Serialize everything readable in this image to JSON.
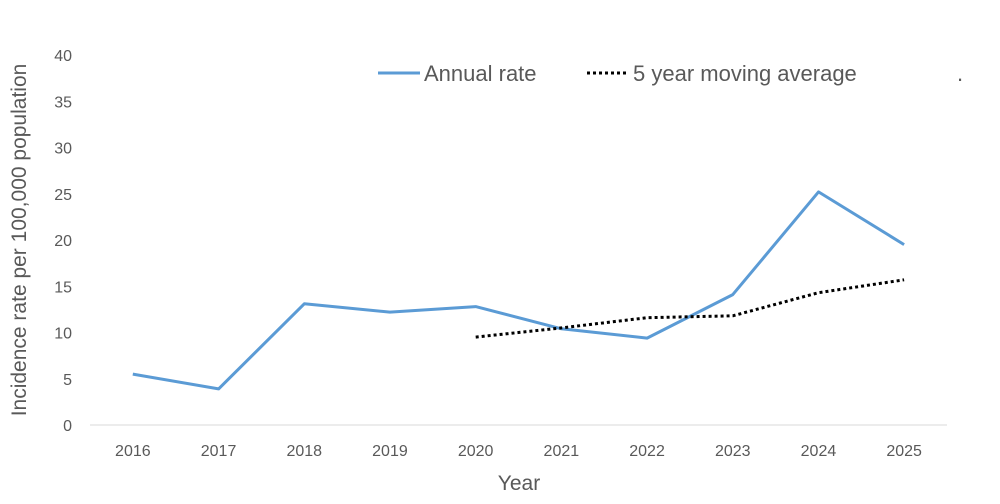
{
  "chart_data": {
    "type": "line",
    "title": "",
    "xlabel": "Year",
    "ylabel": "Incidence rate per 100,000 population",
    "categories": [
      "2016",
      "2017",
      "2018",
      "2019",
      "2020",
      "2021",
      "2022",
      "2023",
      "2024",
      "2025"
    ],
    "ylim": [
      0,
      40
    ],
    "yticks": [
      0,
      5,
      10,
      15,
      20,
      25,
      30,
      35,
      40
    ],
    "ytick_labels": [
      "0",
      "5",
      "10",
      "15",
      "20",
      "25",
      "30",
      "35",
      "40"
    ],
    "grid": false,
    "legend_position": "top",
    "legend_trailing_text": ".",
    "series": [
      {
        "name": "Annual rate",
        "style": "solid",
        "color": "#5B9BD5",
        "values": [
          5.5,
          3.9,
          13.1,
          12.2,
          12.8,
          10.4,
          9.4,
          14.1,
          25.2,
          19.5
        ]
      },
      {
        "name": "5 year moving average",
        "style": "dotted",
        "color": "#000000",
        "values": [
          null,
          null,
          null,
          null,
          9.5,
          10.5,
          11.6,
          11.8,
          14.3,
          15.7
        ]
      }
    ]
  },
  "colors": {
    "axis_line": "#D9D9D9",
    "text": "#595959"
  }
}
